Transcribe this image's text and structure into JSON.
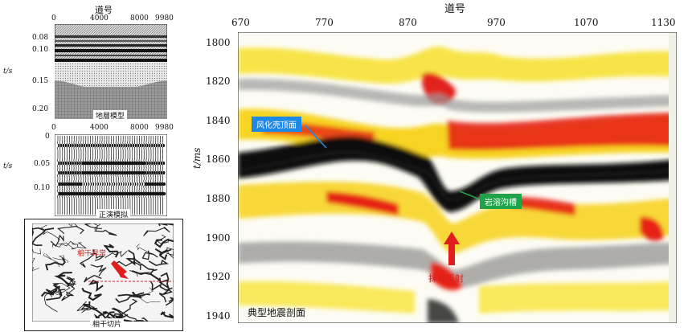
{
  "left_panels": {
    "top": {
      "header": "道号",
      "x_ticks": [
        "0",
        "4000",
        "8000",
        "9980"
      ],
      "y_label": "t/s",
      "y_ticks": [
        "0.08",
        "0.10",
        "0.15",
        "0.20"
      ],
      "caption": "地層模型"
    },
    "middle": {
      "x_ticks": [
        "0",
        "4000",
        "8000",
        "9980"
      ],
      "y_label": "t/s",
      "y_ticks": [
        "0",
        "0.05",
        "0.10"
      ],
      "caption": "正演模拟"
    },
    "bottom": {
      "annotation": "相干异常",
      "caption": "相干切片"
    }
  },
  "main_section": {
    "header": "道号",
    "x_ticks": [
      "670",
      "770",
      "870",
      "970",
      "1070",
      "1130"
    ],
    "y_label": "t/ms",
    "y_ticks": [
      "1800",
      "1820",
      "1840",
      "1860",
      "1880",
      "1900",
      "1920",
      "1940"
    ],
    "caption": "典型地震剖面",
    "annotations": {
      "weathered_top": "风化壳顶面",
      "karst_groove": "岩溶沟槽",
      "strong_reflection": "抹除反射"
    },
    "colors": {
      "label_blue": "#1e88e5",
      "label_green": "#1fa34a",
      "arrow_red": "#e01e1e"
    }
  }
}
